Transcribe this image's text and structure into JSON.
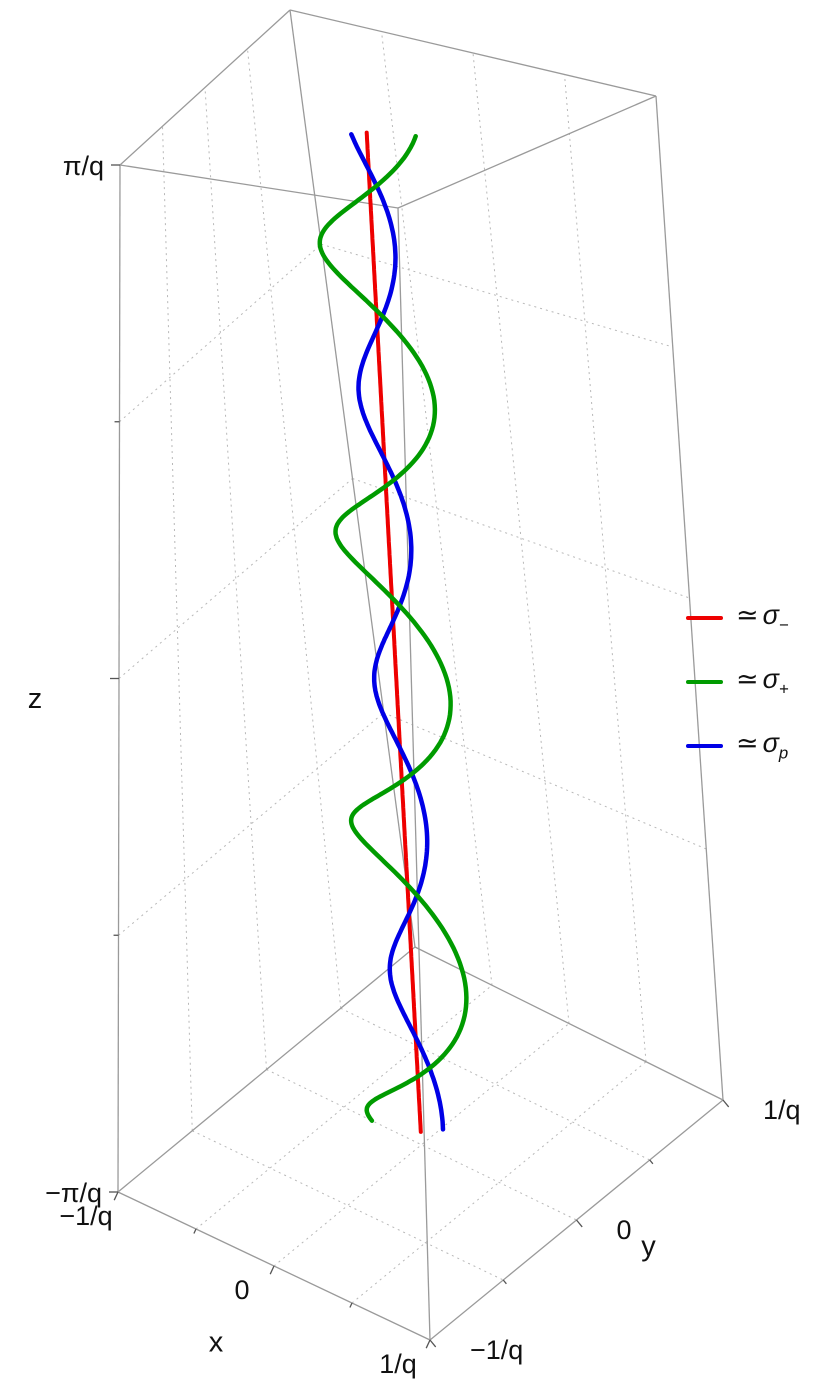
{
  "figure": {
    "background": "#ffffff",
    "kind": "3d-parametric-plot"
  },
  "chart_data": {
    "type": "line",
    "subtype": "parametric-3d-curves",
    "title": "",
    "axes": {
      "x": {
        "title": "x",
        "ticks": [
          {
            "v": -1,
            "label": "−1/q"
          },
          {
            "v": 0,
            "label": "0"
          },
          {
            "v": 1,
            "label": "1/q"
          }
        ],
        "range": [
          "−1/q",
          "1/q"
        ]
      },
      "y": {
        "title": "y",
        "ticks": [
          {
            "v": -1,
            "label": "−1/q"
          },
          {
            "v": 0,
            "label": "0"
          },
          {
            "v": 1,
            "label": "1/q"
          }
        ],
        "range": [
          "−1/q",
          "1/q"
        ]
      },
      "z": {
        "title": "z",
        "ticks": [
          {
            "v": 1,
            "label": "π/q"
          },
          {
            "v": -1,
            "label": "−π/q"
          }
        ],
        "range": [
          "−π/q",
          "π/q"
        ]
      }
    },
    "grid": {
      "style": "dotted",
      "z_lines": [
        -0.5,
        0,
        0.5
      ],
      "xy_lines": [
        -0.5,
        0,
        0.5
      ],
      "color": "#b8b8b8",
      "box_edge_color": "#9a9a9a"
    },
    "curves": [
      {
        "id": "sigma-minus",
        "legend_prefix": "≃",
        "symbol": "σ",
        "sub": "−",
        "color": "#ee0000",
        "type": "straight",
        "x": 0,
        "y": 0,
        "z_span": [
          -0.975,
          0.975
        ],
        "width": 4
      },
      {
        "id": "sigma-plus",
        "legend_prefix": "≃",
        "symbol": "σ",
        "sub": "+",
        "color": "#009b00",
        "type": "helix",
        "ax": 0.32,
        "ay": 0.14,
        "cycles": 3.5,
        "phase_deg": 90,
        "z_span": [
          -1,
          0.99
        ],
        "width": 4.5
      },
      {
        "id": "sigma-p",
        "legend_prefix": "≃",
        "symbol": "σ",
        "sub": "p",
        "color": "#0000e6",
        "type": "helix",
        "ax": 0.13,
        "ay": 0.07,
        "cycles": 3.5,
        "phase_deg": 270,
        "z_span": [
          -0.96,
          0.96
        ],
        "width": 4.5
      }
    ],
    "legend_position": "right-middle",
    "text_color": "#111111"
  }
}
